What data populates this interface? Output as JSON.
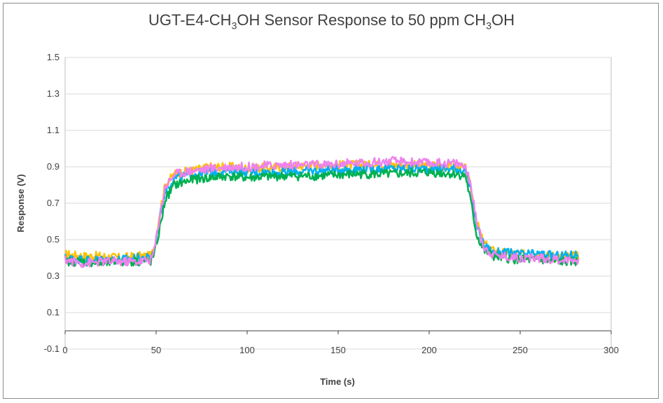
{
  "chart_data": {
    "type": "line",
    "title_parts": [
      "UGT-E4-CH",
      "3",
      "OH Sensor Response to 50 ppm CH",
      "3",
      "OH"
    ],
    "xlabel": "Time (s)",
    "ylabel": "Response (V)",
    "xlim": [
      0,
      300
    ],
    "ylim": [
      -0.1,
      1.5
    ],
    "x_ticks": [
      "0",
      "50",
      "100",
      "150",
      "200",
      "250",
      "300"
    ],
    "y_ticks": [
      "-0.1",
      "0.1",
      "0.3",
      "0.5",
      "0.7",
      "0.9",
      "1.1",
      "1.3",
      "1.5"
    ],
    "grid": "horizontal",
    "legend": "none",
    "series": [
      {
        "color": "#ffc000",
        "x": [
          0,
          10,
          20,
          30,
          40,
          47,
          49,
          52,
          55,
          60,
          70,
          80,
          90,
          100,
          120,
          140,
          160,
          180,
          200,
          215,
          220,
          223,
          226,
          230,
          235,
          240,
          250,
          260,
          270,
          282
        ],
        "y": [
          0.42,
          0.41,
          0.41,
          0.4,
          0.41,
          0.41,
          0.45,
          0.65,
          0.8,
          0.86,
          0.88,
          0.9,
          0.9,
          0.89,
          0.9,
          0.91,
          0.91,
          0.91,
          0.91,
          0.9,
          0.89,
          0.78,
          0.6,
          0.48,
          0.44,
          0.43,
          0.42,
          0.42,
          0.41,
          0.41
        ]
      },
      {
        "color": "#00b0f0",
        "x": [
          0,
          10,
          20,
          30,
          40,
          47,
          49,
          52,
          55,
          60,
          70,
          80,
          90,
          100,
          120,
          140,
          160,
          180,
          200,
          215,
          220,
          223,
          226,
          230,
          235,
          240,
          250,
          260,
          270,
          282
        ],
        "y": [
          0.4,
          0.39,
          0.39,
          0.39,
          0.4,
          0.4,
          0.44,
          0.62,
          0.77,
          0.84,
          0.86,
          0.87,
          0.88,
          0.87,
          0.87,
          0.88,
          0.89,
          0.89,
          0.89,
          0.89,
          0.88,
          0.76,
          0.58,
          0.47,
          0.43,
          0.43,
          0.42,
          0.42,
          0.41,
          0.42
        ]
      },
      {
        "color": "#00b050",
        "x": [
          0,
          10,
          20,
          30,
          40,
          47,
          49,
          52,
          55,
          60,
          70,
          80,
          90,
          100,
          120,
          140,
          160,
          180,
          200,
          215,
          220,
          223,
          226,
          230,
          235,
          240,
          250,
          260,
          270,
          282
        ],
        "y": [
          0.38,
          0.38,
          0.37,
          0.38,
          0.38,
          0.38,
          0.42,
          0.56,
          0.72,
          0.8,
          0.83,
          0.84,
          0.85,
          0.84,
          0.85,
          0.85,
          0.86,
          0.86,
          0.87,
          0.86,
          0.85,
          0.7,
          0.53,
          0.44,
          0.41,
          0.4,
          0.39,
          0.39,
          0.38,
          0.38
        ]
      },
      {
        "color": "#ee82ee",
        "x": [
          0,
          10,
          20,
          30,
          40,
          47,
          49,
          52,
          55,
          60,
          70,
          80,
          90,
          100,
          120,
          140,
          160,
          180,
          200,
          215,
          220,
          223,
          226,
          230,
          235,
          240,
          250,
          260,
          270,
          282
        ],
        "y": [
          0.39,
          0.37,
          0.38,
          0.38,
          0.38,
          0.39,
          0.44,
          0.63,
          0.79,
          0.86,
          0.88,
          0.89,
          0.9,
          0.9,
          0.91,
          0.91,
          0.92,
          0.93,
          0.92,
          0.92,
          0.9,
          0.79,
          0.6,
          0.46,
          0.42,
          0.41,
          0.4,
          0.4,
          0.39,
          0.39
        ]
      }
    ]
  }
}
